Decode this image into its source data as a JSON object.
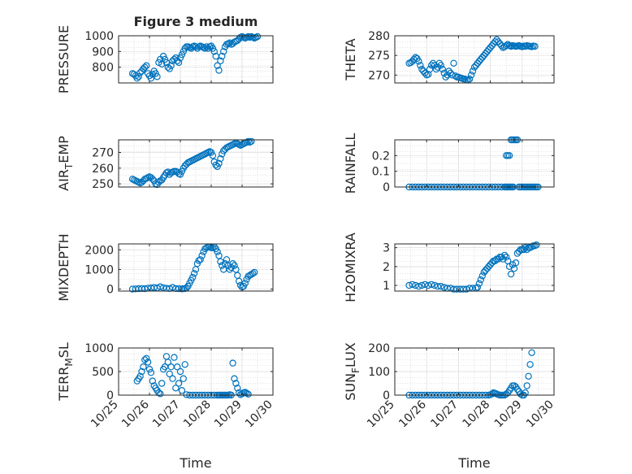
{
  "figure": {
    "title": "Figure 3 medium"
  },
  "colors": {
    "marker": "#0072BD",
    "axes": "#262626",
    "grid": "#b0b0b0"
  },
  "chart_data": [
    {
      "type": "scatter",
      "ylabel": "PRESSURE",
      "ylabel_sub": "",
      "title": "Figure 3 medium",
      "xlim": [
        0,
        5
      ],
      "ylim": [
        700,
        1000
      ],
      "yticks": [
        800,
        900,
        1000
      ],
      "show_x_ticklabels": false,
      "xlabel": "",
      "x": [
        0.45,
        0.5,
        0.55,
        0.6,
        0.65,
        0.7,
        0.75,
        0.8,
        0.85,
        0.9,
        0.95,
        1.0,
        1.05,
        1.1,
        1.15,
        1.2,
        1.25,
        1.3,
        1.35,
        1.4,
        1.45,
        1.5,
        1.55,
        1.6,
        1.65,
        1.7,
        1.75,
        1.8,
        1.85,
        1.9,
        1.95,
        2.0,
        2.05,
        2.1,
        2.15,
        2.2,
        2.25,
        2.3,
        2.35,
        2.4,
        2.45,
        2.5,
        2.55,
        2.6,
        2.65,
        2.7,
        2.75,
        2.8,
        2.85,
        2.9,
        2.95,
        3.0,
        3.05,
        3.1,
        3.15,
        3.2,
        3.25,
        3.3,
        3.35,
        3.4,
        3.45,
        3.5,
        3.55,
        3.6,
        3.65,
        3.7,
        3.75,
        3.8,
        3.85,
        3.9,
        3.95,
        4.0,
        4.05,
        4.1,
        4.15,
        4.2,
        4.25,
        4.3,
        4.35,
        4.4,
        4.45,
        4.5
      ],
      "y": [
        760,
        755,
        745,
        730,
        740,
        765,
        775,
        790,
        800,
        810,
        760,
        745,
        730,
        755,
        775,
        760,
        740,
        830,
        850,
        820,
        870,
        850,
        830,
        800,
        790,
        810,
        840,
        850,
        860,
        840,
        830,
        860,
        880,
        900,
        920,
        930,
        930,
        925,
        920,
        930,
        935,
        930,
        920,
        930,
        935,
        930,
        925,
        920,
        930,
        920,
        930,
        935,
        920,
        900,
        870,
        810,
        780,
        840,
        870,
        900,
        930,
        945,
        950,
        955,
        945,
        950,
        960,
        965,
        970,
        980,
        990,
        995,
        990,
        985,
        990,
        995,
        990,
        995,
        990,
        985,
        990,
        995
      ]
    },
    {
      "type": "scatter",
      "ylabel": "THETA",
      "ylabel_sub": "",
      "xlim": [
        0,
        5
      ],
      "ylim": [
        268,
        280
      ],
      "yticks": [
        270,
        275,
        280
      ],
      "show_x_ticklabels": false,
      "xlabel": "",
      "x": [
        0.45,
        0.5,
        0.55,
        0.6,
        0.65,
        0.7,
        0.75,
        0.8,
        0.85,
        0.9,
        0.95,
        1.0,
        1.05,
        1.1,
        1.15,
        1.2,
        1.25,
        1.3,
        1.35,
        1.4,
        1.45,
        1.5,
        1.55,
        1.6,
        1.65,
        1.7,
        1.75,
        1.8,
        1.85,
        1.9,
        1.95,
        2.0,
        2.05,
        2.1,
        2.15,
        2.2,
        2.25,
        2.3,
        2.35,
        2.4,
        2.45,
        2.5,
        2.55,
        2.6,
        2.65,
        2.7,
        2.75,
        2.8,
        2.85,
        2.9,
        2.95,
        3.0,
        3.05,
        3.1,
        3.15,
        3.2,
        3.25,
        3.3,
        3.35,
        3.4,
        3.45,
        3.5,
        3.55,
        3.6,
        3.65,
        3.7,
        3.75,
        3.8,
        3.85,
        3.9,
        3.95,
        4.0,
        4.05,
        4.1,
        4.15,
        4.2,
        4.25,
        4.3,
        4.35,
        4.4
      ],
      "y": [
        273,
        273.2,
        273.5,
        274,
        274.5,
        274.2,
        273.5,
        272.5,
        271.5,
        271,
        270.5,
        270,
        270.2,
        271.5,
        272.5,
        273,
        272.5,
        271.5,
        272,
        273,
        272.5,
        271.5,
        270.5,
        269.5,
        270,
        271,
        270.5,
        270,
        273,
        269.8,
        269.5,
        269.5,
        269.3,
        269.2,
        269,
        269,
        268.8,
        268.7,
        269,
        270,
        271,
        272,
        272.5,
        273,
        273.5,
        274,
        274.5,
        275,
        275.5,
        276,
        276.5,
        277,
        277.5,
        278,
        278.5,
        279,
        278.5,
        278,
        277.5,
        277,
        277.2,
        277.5,
        277.8,
        277.5,
        277.3,
        277.5,
        277.4,
        277.3,
        277.4,
        277.5,
        277.3,
        277.2,
        277.4,
        277.3,
        277.5,
        277.4,
        277.3,
        277.2,
        277.4,
        277.3
      ]
    },
    {
      "type": "scatter",
      "ylabel": "AIR",
      "ylabel_sub": "T",
      "ylabel_tail": "EMP",
      "xlim": [
        0,
        5
      ],
      "ylim": [
        248,
        278
      ],
      "yticks": [
        250,
        260,
        270
      ],
      "show_x_ticklabels": false,
      "xlabel": "",
      "x": [
        0.45,
        0.5,
        0.55,
        0.6,
        0.65,
        0.7,
        0.75,
        0.8,
        0.85,
        0.9,
        0.95,
        1.0,
        1.05,
        1.1,
        1.15,
        1.2,
        1.25,
        1.3,
        1.35,
        1.4,
        1.45,
        1.5,
        1.55,
        1.6,
        1.65,
        1.7,
        1.75,
        1.8,
        1.85,
        1.9,
        1.95,
        2.0,
        2.05,
        2.1,
        2.15,
        2.2,
        2.25,
        2.3,
        2.35,
        2.4,
        2.45,
        2.5,
        2.55,
        2.6,
        2.65,
        2.7,
        2.75,
        2.8,
        2.85,
        2.9,
        2.95,
        3.0,
        3.05,
        3.1,
        3.15,
        3.2,
        3.25,
        3.3,
        3.35,
        3.4,
        3.45,
        3.5,
        3.55,
        3.6,
        3.65,
        3.7,
        3.75,
        3.8,
        3.85,
        3.9,
        3.95,
        4.0,
        4.05,
        4.1,
        4.15,
        4.2,
        4.25,
        4.3
      ],
      "y": [
        253,
        252.5,
        252,
        251.5,
        251,
        250.5,
        251,
        252,
        253,
        253.5,
        254,
        254.5,
        254,
        253,
        252,
        250,
        249.5,
        251,
        252,
        252.5,
        254,
        255.5,
        257,
        257.5,
        256,
        257,
        257.5,
        258,
        258,
        257.5,
        256.5,
        256,
        258,
        260,
        261.5,
        262.5,
        263.5,
        264,
        264.5,
        265,
        265.5,
        266,
        266.5,
        267,
        267.5,
        268,
        268.5,
        269,
        269.5,
        270,
        270.5,
        270,
        268,
        264,
        262,
        261,
        263,
        266,
        269,
        271,
        272,
        273,
        273.5,
        274,
        274.5,
        275,
        275.5,
        276,
        275.5,
        275,
        274.5,
        275,
        275.5,
        276,
        276.5,
        277,
        276.5,
        277
      ]
    },
    {
      "type": "scatter",
      "ylabel": "RAINFALL",
      "ylabel_sub": "",
      "xlim": [
        0,
        5
      ],
      "ylim": [
        0,
        0.3
      ],
      "yticks": [
        0,
        0.1,
        0.2
      ],
      "show_x_ticklabels": false,
      "xlabel": "",
      "x": [
        0.45,
        0.55,
        0.65,
        0.75,
        0.85,
        0.95,
        1.05,
        1.15,
        1.25,
        1.35,
        1.45,
        1.55,
        1.65,
        1.75,
        1.85,
        1.95,
        2.05,
        2.15,
        2.25,
        2.35,
        2.45,
        2.55,
        2.65,
        2.75,
        2.85,
        2.95,
        3.05,
        3.15,
        3.25,
        3.35,
        3.45,
        3.5,
        3.55,
        3.6,
        3.65,
        3.7,
        3.75,
        3.8,
        3.85,
        3.9,
        3.95,
        4.0,
        4.05,
        4.1,
        4.15,
        4.2,
        4.25,
        4.3,
        4.35,
        4.4,
        4.45,
        4.5,
        3.48,
        3.52,
        3.56,
        3.6,
        3.64,
        3.68,
        3.72
      ],
      "y": [
        0,
        0,
        0,
        0,
        0,
        0,
        0,
        0,
        0,
        0,
        0,
        0,
        0,
        0,
        0,
        0,
        0,
        0,
        0,
        0,
        0,
        0,
        0,
        0,
        0,
        0,
        0,
        0,
        0,
        0,
        0,
        0.2,
        0.2,
        0.2,
        0.3,
        0.3,
        0.3,
        0.3,
        0.3,
        0,
        0,
        0,
        0,
        0,
        0,
        0,
        0,
        0,
        0,
        0,
        0,
        0,
        0,
        0,
        0,
        0,
        0,
        0,
        0
      ]
    },
    {
      "type": "scatter",
      "ylabel": "MIXDEPTH",
      "ylabel_sub": "",
      "xlim": [
        0,
        5
      ],
      "ylim": [
        -100,
        2300
      ],
      "yticks": [
        0,
        1000,
        2000
      ],
      "show_x_ticklabels": false,
      "xlabel": "",
      "x": [
        0.45,
        0.55,
        0.65,
        0.75,
        0.85,
        0.95,
        1.05,
        1.15,
        1.25,
        1.35,
        1.45,
        1.55,
        1.65,
        1.75,
        1.85,
        1.95,
        2.05,
        2.1,
        2.15,
        2.2,
        2.25,
        2.3,
        2.35,
        2.4,
        2.45,
        2.5,
        2.55,
        2.6,
        2.65,
        2.7,
        2.75,
        2.8,
        2.85,
        2.9,
        2.95,
        3.0,
        3.05,
        3.1,
        3.15,
        3.2,
        3.25,
        3.3,
        3.35,
        3.4,
        3.45,
        3.5,
        3.55,
        3.6,
        3.65,
        3.7,
        3.75,
        3.8,
        3.85,
        3.9,
        3.95,
        4.0,
        4.05,
        4.1,
        4.15,
        4.2,
        4.25,
        4.3,
        4.35,
        4.4
      ],
      "y": [
        0,
        10,
        20,
        30,
        20,
        50,
        60,
        80,
        60,
        120,
        70,
        40,
        30,
        80,
        30,
        20,
        10,
        20,
        30,
        60,
        150,
        300,
        450,
        600,
        800,
        1000,
        1300,
        1450,
        1500,
        1700,
        1900,
        2050,
        2100,
        2150,
        2150,
        2100,
        2100,
        2150,
        2050,
        1900,
        1700,
        1400,
        1200,
        1000,
        1300,
        1500,
        1200,
        1000,
        1100,
        1300,
        1200,
        1000,
        700,
        400,
        200,
        100,
        150,
        300,
        500,
        650,
        700,
        750,
        800,
        850
      ]
    },
    {
      "type": "scatter",
      "ylabel": "H2OMIXRA",
      "ylabel_sub": "",
      "xlim": [
        0,
        5
      ],
      "ylim": [
        0.7,
        3.2
      ],
      "yticks": [
        1,
        2,
        3
      ],
      "show_x_ticklabels": false,
      "xlabel": "",
      "x": [
        0.45,
        0.55,
        0.65,
        0.75,
        0.85,
        0.95,
        1.05,
        1.15,
        1.25,
        1.35,
        1.45,
        1.55,
        1.65,
        1.75,
        1.85,
        1.95,
        2.05,
        2.15,
        2.25,
        2.35,
        2.45,
        2.55,
        2.6,
        2.65,
        2.7,
        2.75,
        2.8,
        2.85,
        2.9,
        2.95,
        3.0,
        3.05,
        3.1,
        3.15,
        3.2,
        3.25,
        3.3,
        3.35,
        3.4,
        3.45,
        3.5,
        3.55,
        3.6,
        3.65,
        3.7,
        3.75,
        3.8,
        3.85,
        3.9,
        3.95,
        4.0,
        4.05,
        4.1,
        4.15,
        4.2,
        4.25,
        4.3,
        4.35,
        4.4,
        4.45
      ],
      "y": [
        1.0,
        1.05,
        1.0,
        0.95,
        1.0,
        1.05,
        1.0,
        1.05,
        1.0,
        0.95,
        0.95,
        0.9,
        0.85,
        0.85,
        0.8,
        0.8,
        0.8,
        0.8,
        0.8,
        0.85,
        0.85,
        0.85,
        0.9,
        1.1,
        1.3,
        1.5,
        1.7,
        1.8,
        1.9,
        2.0,
        2.1,
        2.2,
        2.3,
        2.3,
        2.4,
        2.4,
        2.5,
        2.5,
        2.4,
        2.6,
        2.5,
        2.3,
        2.0,
        1.6,
        2.1,
        1.9,
        2.2,
        2.7,
        2.8,
        2.9,
        2.9,
        2.9,
        3.0,
        2.9,
        3.0,
        3.0,
        3.05,
        3.1,
        3.1,
        3.15
      ]
    },
    {
      "type": "scatter",
      "ylabel": "TERR",
      "ylabel_sub": "M",
      "ylabel_tail": "SL",
      "xlim": [
        0,
        5
      ],
      "ylim": [
        0,
        1000
      ],
      "yticks": [
        0,
        500,
        1000
      ],
      "show_x_ticklabels": true,
      "xlabel": "Time",
      "xticks": [
        0,
        1,
        2,
        3,
        4,
        5
      ],
      "xticklabels": [
        "10/25",
        "10/26",
        "10/27",
        "10/28",
        "10/29",
        "10/30"
      ],
      "x": [
        0.6,
        0.65,
        0.7,
        0.75,
        0.8,
        0.85,
        0.9,
        0.95,
        1.0,
        1.05,
        1.1,
        1.15,
        1.2,
        1.25,
        1.3,
        1.35,
        1.4,
        1.45,
        1.5,
        1.55,
        1.6,
        1.65,
        1.7,
        1.75,
        1.8,
        1.85,
        1.9,
        1.95,
        2.0,
        2.05,
        2.1,
        2.15,
        2.2,
        2.3,
        2.4,
        2.5,
        2.6,
        2.7,
        2.8,
        2.9,
        3.0,
        3.1,
        3.2,
        3.25,
        3.3,
        3.35,
        3.4,
        3.45,
        3.5,
        3.55,
        3.6,
        3.65,
        3.7,
        3.75,
        3.8,
        3.85,
        3.9,
        3.95,
        4.0,
        4.05,
        4.1,
        4.15,
        4.2
      ],
      "y": [
        300,
        350,
        400,
        500,
        600,
        750,
        780,
        700,
        550,
        480,
        300,
        200,
        150,
        100,
        50,
        30,
        250,
        550,
        600,
        820,
        700,
        450,
        600,
        350,
        800,
        150,
        600,
        250,
        500,
        100,
        350,
        650,
        10,
        0,
        0,
        0,
        0,
        0,
        0,
        0,
        0,
        0,
        0,
        0,
        0,
        0,
        0,
        0,
        0,
        0,
        10,
        0,
        680,
        350,
        250,
        150,
        50,
        10,
        30,
        50,
        60,
        40,
        20
      ]
    },
    {
      "type": "scatter",
      "ylabel": "SUN",
      "ylabel_sub": "F",
      "ylabel_tail": "LUX",
      "xlim": [
        0,
        5
      ],
      "ylim": [
        0,
        200
      ],
      "yticks": [
        0,
        100,
        200
      ],
      "show_x_ticklabels": true,
      "xlabel": "Time",
      "xticks": [
        0,
        1,
        2,
        3,
        4,
        5
      ],
      "xticklabels": [
        "10/25",
        "10/26",
        "10/27",
        "10/28",
        "10/29",
        "10/30"
      ],
      "x": [
        0.45,
        0.55,
        0.65,
        0.75,
        0.85,
        0.95,
        1.05,
        1.15,
        1.25,
        1.35,
        1.45,
        1.55,
        1.65,
        1.75,
        1.85,
        1.95,
        2.05,
        2.15,
        2.25,
        2.35,
        2.45,
        2.55,
        2.65,
        2.75,
        2.85,
        2.95,
        3.0,
        3.05,
        3.1,
        3.15,
        3.2,
        3.25,
        3.3,
        3.35,
        3.4,
        3.45,
        3.5,
        3.55,
        3.6,
        3.65,
        3.7,
        3.75,
        3.8,
        3.85,
        3.9,
        3.95,
        4.0,
        4.05,
        4.1,
        4.15,
        4.2,
        4.25,
        4.3
      ],
      "y": [
        0,
        0,
        0,
        0,
        0,
        0,
        0,
        0,
        0,
        0,
        0,
        0,
        0,
        0,
        0,
        0,
        0,
        0,
        0,
        0,
        0,
        0,
        0,
        0,
        0,
        0,
        2,
        5,
        10,
        8,
        5,
        2,
        0,
        0,
        0,
        0,
        5,
        10,
        20,
        30,
        40,
        40,
        35,
        25,
        15,
        5,
        0,
        0,
        10,
        40,
        80,
        130,
        180
      ]
    }
  ]
}
